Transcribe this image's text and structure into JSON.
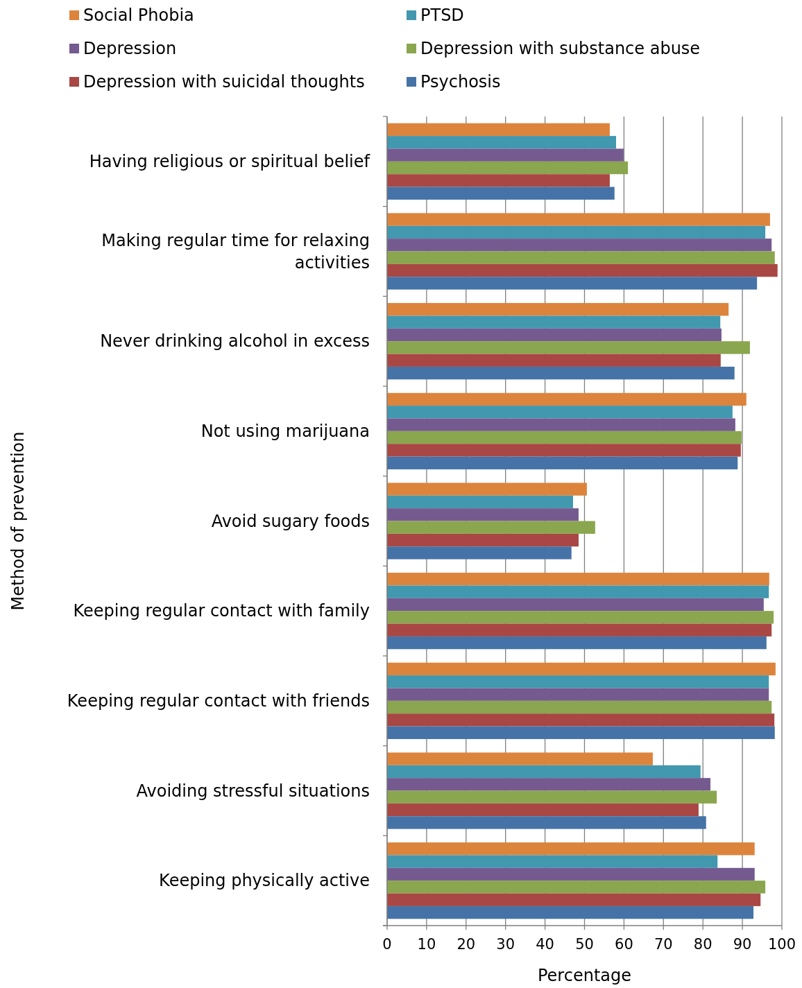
{
  "chart_data": {
    "type": "bar",
    "orientation": "horizontal",
    "ylabel": "Method of prevention",
    "xlabel": "Percentage",
    "categories": [
      "Having religious or spiritual belief",
      "Making regular time for relaxing activities",
      "Never drinking alcohol in excess",
      "Not using marijuana",
      "Avoid sugary foods",
      "Keeping regular contact with family",
      "Keeping regular contact with friends",
      "Avoiding stressful situations",
      "Keeping physically active"
    ],
    "series": [
      {
        "name": "Social Phobia",
        "color": "#dd843c",
        "values": [
          56.4,
          97.0,
          86.5,
          91.0,
          50.6,
          96.8,
          98.4,
          67.3,
          93.1
        ]
      },
      {
        "name": "PTSD",
        "color": "#4298af",
        "values": [
          58.0,
          95.8,
          84.4,
          87.5,
          47.1,
          96.7,
          96.7,
          79.4,
          83.7
        ]
      },
      {
        "name": "Depression",
        "color": "#755a90",
        "values": [
          59.9,
          97.4,
          84.7,
          88.2,
          48.5,
          95.4,
          96.7,
          81.9,
          93.1
        ]
      },
      {
        "name": "Depression with substance abuse",
        "color": "#8aa64e",
        "values": [
          61.0,
          98.2,
          91.9,
          89.8,
          52.7,
          97.9,
          97.4,
          83.5,
          95.8
        ]
      },
      {
        "name": "Depression with suicidal thoughts",
        "color": "#a94744",
        "values": [
          56.4,
          98.9,
          84.5,
          89.6,
          48.5,
          97.4,
          98.1,
          78.9,
          94.6
        ]
      },
      {
        "name": "Psychosis",
        "color": "#4573a7",
        "values": [
          57.6,
          93.7,
          88.0,
          88.8,
          46.7,
          96.1,
          98.2,
          80.8,
          92.8
        ]
      }
    ],
    "xlim": [
      0,
      100
    ],
    "xticks": [
      0,
      10,
      20,
      30,
      40,
      50,
      60,
      70,
      80,
      90,
      100
    ],
    "grid": "x",
    "legend": "top"
  }
}
